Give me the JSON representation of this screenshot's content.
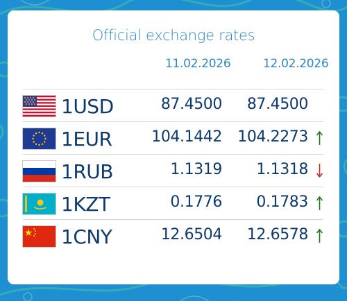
{
  "title": "Official exchange rates",
  "dates": [
    "11.02.2026",
    "12.02.2026"
  ],
  "colors": {
    "up": "#1a7a1a",
    "down": "#c62828",
    "accent": "#2c88c4",
    "text": "#0d3a6e"
  },
  "rates": [
    {
      "code": "1USD",
      "flag": "us-flag-icon",
      "v1": "87.4500",
      "v2": "87.4500",
      "trend": "none"
    },
    {
      "code": "1EUR",
      "flag": "eu-flag-icon",
      "v1": "104.1442",
      "v2": "104.2273",
      "trend": "up"
    },
    {
      "code": "1RUB",
      "flag": "ru-flag-icon",
      "v1": "1.1319",
      "v2": "1.1318",
      "trend": "down"
    },
    {
      "code": "1KZT",
      "flag": "kz-flag-icon",
      "v1": "0.1776",
      "v2": "0.1783",
      "trend": "up"
    },
    {
      "code": "1CNY",
      "flag": "cn-flag-icon",
      "v1": "12.6504",
      "v2": "12.6578",
      "trend": "up"
    }
  ]
}
